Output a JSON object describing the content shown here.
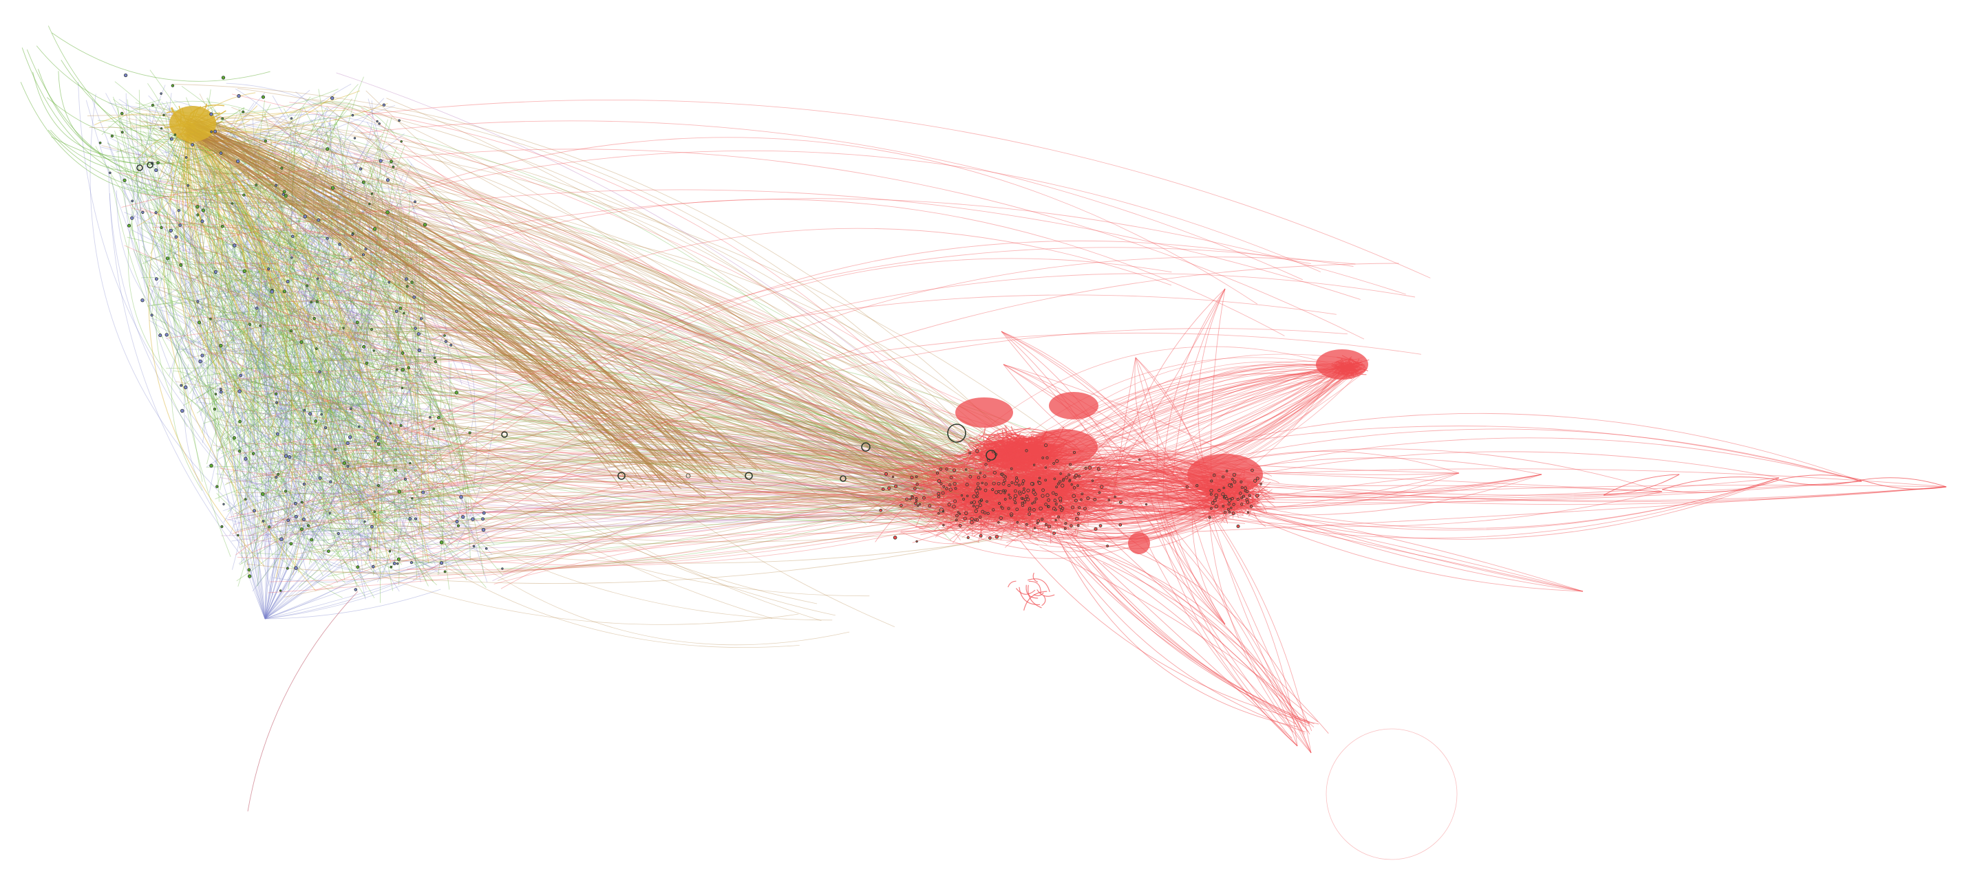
{
  "colors": {
    "background": "#ffffff",
    "red_cluster": "#ef4a4e",
    "green_cluster": "#5fae32",
    "blue_cluster": "#7d84cc",
    "yellow_cluster": "#d8b02c",
    "bridge": "#b2803f",
    "purple_edges": "#b06ab4",
    "node_stroke": "#2f3b2f"
  },
  "clusters": [
    {
      "name": "green-blue-cluster",
      "color_key": "green_cluster"
    },
    {
      "name": "yellow-hub-cluster",
      "color_key": "yellow_cluster"
    },
    {
      "name": "red-central-cluster",
      "color_key": "red_cluster"
    },
    {
      "name": "red-right-cluster",
      "color_key": "red_cluster"
    },
    {
      "name": "red-satellite-chain",
      "color_key": "red_cluster"
    }
  ],
  "legend": []
}
